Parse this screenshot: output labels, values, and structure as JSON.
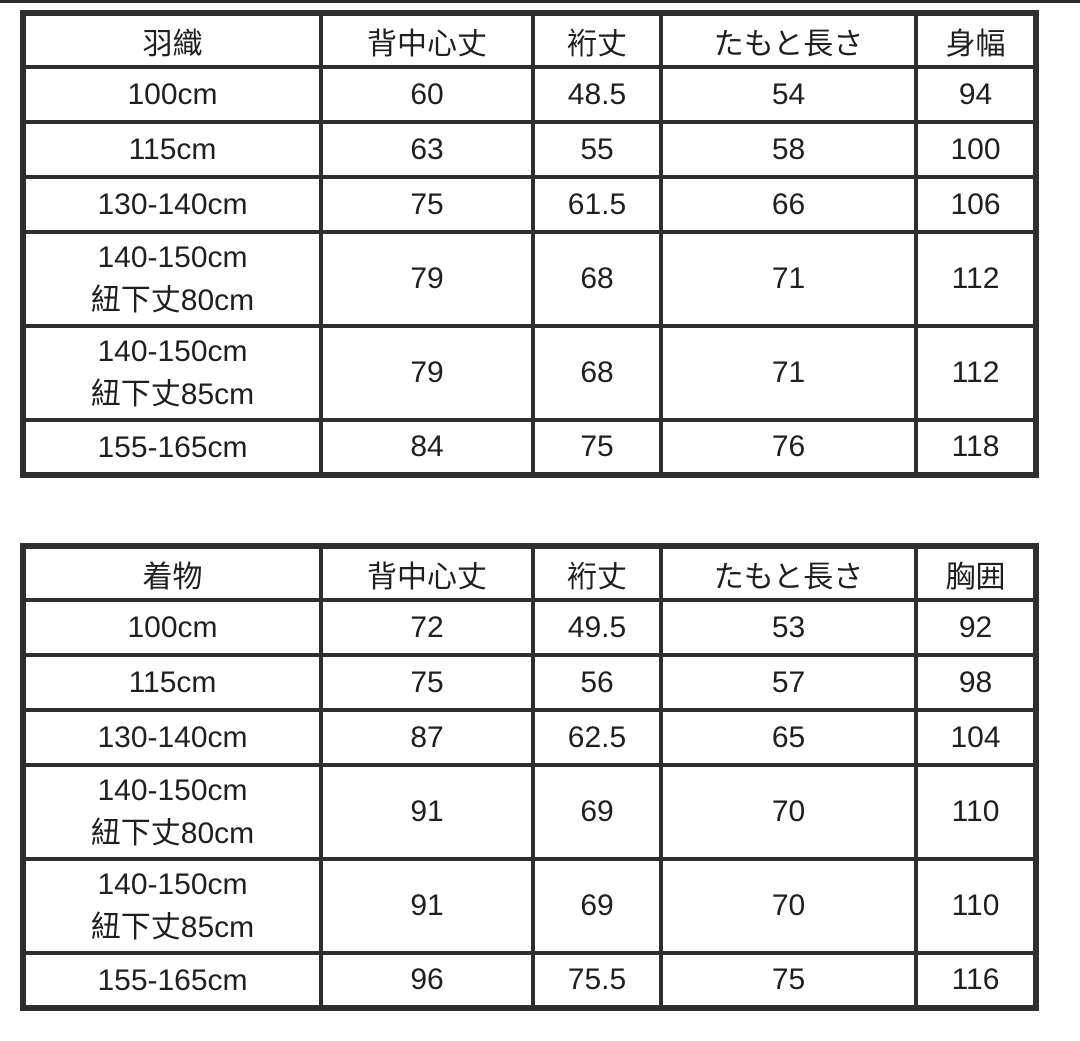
{
  "page": {
    "background": "#ffffff",
    "text_color": "#1f1f1f",
    "border_color": "#2e2e2e"
  },
  "tables": [
    {
      "name": "haori",
      "headers": [
        "羽織",
        "背中心丈",
        "裄丈",
        "たもと長さ",
        "身幅"
      ],
      "rows": [
        {
          "size": [
            "100cm"
          ],
          "values": [
            "60",
            "48.5",
            "54",
            "94"
          ]
        },
        {
          "size": [
            "115cm"
          ],
          "values": [
            "63",
            "55",
            "58",
            "100"
          ]
        },
        {
          "size": [
            "130-140cm"
          ],
          "values": [
            "75",
            "61.5",
            "66",
            "106"
          ]
        },
        {
          "size": [
            "140-150cm",
            "紐下丈80cm"
          ],
          "values": [
            "79",
            "68",
            "71",
            "112"
          ]
        },
        {
          "size": [
            "140-150cm",
            "紐下丈85cm"
          ],
          "values": [
            "79",
            "68",
            "71",
            "112"
          ]
        },
        {
          "size": [
            "155-165cm"
          ],
          "values": [
            "84",
            "75",
            "76",
            "118"
          ]
        }
      ]
    },
    {
      "name": "kimono",
      "headers": [
        "着物",
        "背中心丈",
        "裄丈",
        "たもと長さ",
        "胸囲"
      ],
      "rows": [
        {
          "size": [
            "100cm"
          ],
          "values": [
            "72",
            "49.5",
            "53",
            "92"
          ]
        },
        {
          "size": [
            "115cm"
          ],
          "values": [
            "75",
            "56",
            "57",
            "98"
          ]
        },
        {
          "size": [
            "130-140cm"
          ],
          "values": [
            "87",
            "62.5",
            "65",
            "104"
          ]
        },
        {
          "size": [
            "140-150cm",
            "紐下丈80cm"
          ],
          "values": [
            "91",
            "69",
            "70",
            "110"
          ]
        },
        {
          "size": [
            "140-150cm",
            "紐下丈85cm"
          ],
          "values": [
            "91",
            "69",
            "70",
            "110"
          ]
        },
        {
          "size": [
            "155-165cm"
          ],
          "values": [
            "96",
            "75.5",
            "75",
            "116"
          ]
        }
      ]
    }
  ]
}
